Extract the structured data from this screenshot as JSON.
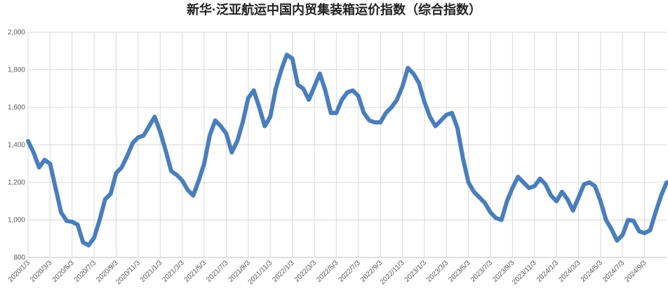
{
  "chart_data": {
    "type": "line",
    "title": "新华·泛亚航运中国内贸集装箱运价指数（综合指数）",
    "categories": [
      "2020/1/3",
      null,
      null,
      null,
      "2020/3/3",
      null,
      null,
      null,
      "2020/5/3",
      null,
      null,
      null,
      "2020/7/3",
      null,
      null,
      null,
      "2020/9/3",
      null,
      null,
      null,
      "2020/11/3",
      null,
      null,
      null,
      "2021/1/3",
      null,
      null,
      null,
      "2021/3/3",
      null,
      null,
      null,
      "2021/5/3",
      null,
      null,
      null,
      "2021/7/3",
      null,
      null,
      null,
      "2021/9/3",
      null,
      null,
      null,
      "2021/11/3",
      null,
      null,
      null,
      "2022/1/3",
      null,
      null,
      null,
      "2022/3/3",
      null,
      null,
      null,
      "2022/5/3",
      null,
      null,
      null,
      "2022/7/3",
      null,
      null,
      null,
      "2022/9/3",
      null,
      null,
      null,
      "2022/11/3",
      null,
      null,
      null,
      "2023/1/3",
      null,
      null,
      null,
      "2023/3/3",
      null,
      null,
      null,
      "2023/5/3",
      null,
      null,
      null,
      "2023/7/3",
      null,
      null,
      null,
      "2023/9/3",
      null,
      null,
      null,
      "2023/11/3",
      null,
      null,
      null,
      "2024/1/3",
      null,
      null,
      null,
      "2024/3/3",
      null,
      null,
      null,
      "2024/5/3",
      null,
      null,
      null,
      "2024/7/3",
      null,
      null,
      null,
      "2024/9/3",
      null,
      null,
      null,
      null
    ],
    "series": [
      {
        "color": "#4a7ebb",
        "values": [
          1420,
          1360,
          1280,
          1320,
          1300,
          1170,
          1040,
          995,
          990,
          975,
          880,
          865,
          905,
          1000,
          1110,
          1140,
          1250,
          1280,
          1340,
          1410,
          1440,
          1450,
          1500,
          1550,
          1470,
          1370,
          1260,
          1240,
          1210,
          1160,
          1130,
          1210,
          1300,
          1450,
          1530,
          1500,
          1460,
          1360,
          1420,
          1520,
          1650,
          1690,
          1600,
          1500,
          1550,
          1700,
          1800,
          1880,
          1860,
          1720,
          1700,
          1640,
          1710,
          1780,
          1690,
          1570,
          1570,
          1640,
          1680,
          1690,
          1660,
          1570,
          1530,
          1520,
          1520,
          1570,
          1600,
          1640,
          1710,
          1810,
          1780,
          1730,
          1630,
          1550,
          1500,
          1530,
          1560,
          1570,
          1490,
          1330,
          1200,
          1150,
          1120,
          1090,
          1040,
          1010,
          1000,
          1100,
          1170,
          1230,
          1200,
          1170,
          1180,
          1220,
          1190,
          1130,
          1100,
          1150,
          1110,
          1050,
          1120,
          1190,
          1200,
          1180,
          1100,
          1000,
          950,
          890,
          920,
          1000,
          995,
          940,
          930,
          945,
          1040,
          1130,
          1200
        ]
      }
    ],
    "ylim": [
      800,
      2000
    ],
    "yticks": [
      800,
      {
        "value": 1000,
        "label": "1,000"
      },
      {
        "value": 1200,
        "label": "1,200"
      },
      {
        "value": 1400,
        "label": "1,400"
      },
      {
        "value": 1600,
        "label": "1,600"
      },
      {
        "value": 1800,
        "label": "1,800"
      },
      {
        "value": 2000,
        "label": "2,000"
      }
    ],
    "grid": true
  }
}
